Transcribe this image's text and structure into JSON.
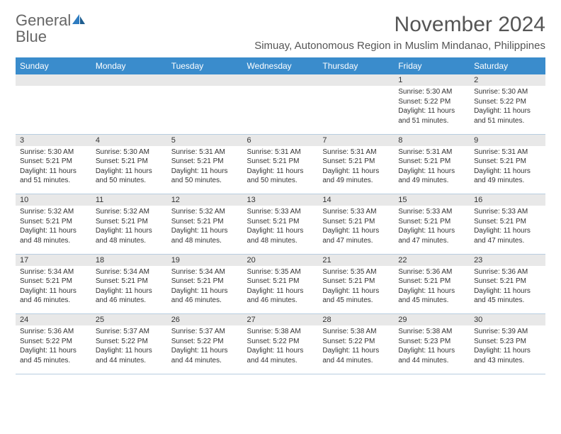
{
  "logo": {
    "word1": "General",
    "word2": "Blue"
  },
  "title": "November 2024",
  "location": "Simuay, Autonomous Region in Muslim Mindanao, Philippines",
  "colors": {
    "header_bg": "#3a8ccc",
    "header_text": "#ffffff",
    "daynum_bg": "#e8e8e8",
    "border": "#b8cde0",
    "text": "#333333",
    "title": "#555555",
    "logo_gray": "#666666",
    "logo_blue": "#2e7cc0"
  },
  "typography": {
    "title_fontsize": 30,
    "location_fontsize": 15,
    "header_fontsize": 12,
    "daynum_fontsize": 11,
    "cell_fontsize": 10
  },
  "weekdays": [
    "Sunday",
    "Monday",
    "Tuesday",
    "Wednesday",
    "Thursday",
    "Friday",
    "Saturday"
  ],
  "weeks": [
    {
      "nums": [
        "",
        "",
        "",
        "",
        "",
        "1",
        "2"
      ],
      "cells": [
        null,
        null,
        null,
        null,
        null,
        {
          "sunrise": "Sunrise: 5:30 AM",
          "sunset": "Sunset: 5:22 PM",
          "daylight": "Daylight: 11 hours and 51 minutes."
        },
        {
          "sunrise": "Sunrise: 5:30 AM",
          "sunset": "Sunset: 5:22 PM",
          "daylight": "Daylight: 11 hours and 51 minutes."
        }
      ]
    },
    {
      "nums": [
        "3",
        "4",
        "5",
        "6",
        "7",
        "8",
        "9"
      ],
      "cells": [
        {
          "sunrise": "Sunrise: 5:30 AM",
          "sunset": "Sunset: 5:21 PM",
          "daylight": "Daylight: 11 hours and 51 minutes."
        },
        {
          "sunrise": "Sunrise: 5:30 AM",
          "sunset": "Sunset: 5:21 PM",
          "daylight": "Daylight: 11 hours and 50 minutes."
        },
        {
          "sunrise": "Sunrise: 5:31 AM",
          "sunset": "Sunset: 5:21 PM",
          "daylight": "Daylight: 11 hours and 50 minutes."
        },
        {
          "sunrise": "Sunrise: 5:31 AM",
          "sunset": "Sunset: 5:21 PM",
          "daylight": "Daylight: 11 hours and 50 minutes."
        },
        {
          "sunrise": "Sunrise: 5:31 AM",
          "sunset": "Sunset: 5:21 PM",
          "daylight": "Daylight: 11 hours and 49 minutes."
        },
        {
          "sunrise": "Sunrise: 5:31 AM",
          "sunset": "Sunset: 5:21 PM",
          "daylight": "Daylight: 11 hours and 49 minutes."
        },
        {
          "sunrise": "Sunrise: 5:31 AM",
          "sunset": "Sunset: 5:21 PM",
          "daylight": "Daylight: 11 hours and 49 minutes."
        }
      ]
    },
    {
      "nums": [
        "10",
        "11",
        "12",
        "13",
        "14",
        "15",
        "16"
      ],
      "cells": [
        {
          "sunrise": "Sunrise: 5:32 AM",
          "sunset": "Sunset: 5:21 PM",
          "daylight": "Daylight: 11 hours and 48 minutes."
        },
        {
          "sunrise": "Sunrise: 5:32 AM",
          "sunset": "Sunset: 5:21 PM",
          "daylight": "Daylight: 11 hours and 48 minutes."
        },
        {
          "sunrise": "Sunrise: 5:32 AM",
          "sunset": "Sunset: 5:21 PM",
          "daylight": "Daylight: 11 hours and 48 minutes."
        },
        {
          "sunrise": "Sunrise: 5:33 AM",
          "sunset": "Sunset: 5:21 PM",
          "daylight": "Daylight: 11 hours and 48 minutes."
        },
        {
          "sunrise": "Sunrise: 5:33 AM",
          "sunset": "Sunset: 5:21 PM",
          "daylight": "Daylight: 11 hours and 47 minutes."
        },
        {
          "sunrise": "Sunrise: 5:33 AM",
          "sunset": "Sunset: 5:21 PM",
          "daylight": "Daylight: 11 hours and 47 minutes."
        },
        {
          "sunrise": "Sunrise: 5:33 AM",
          "sunset": "Sunset: 5:21 PM",
          "daylight": "Daylight: 11 hours and 47 minutes."
        }
      ]
    },
    {
      "nums": [
        "17",
        "18",
        "19",
        "20",
        "21",
        "22",
        "23"
      ],
      "cells": [
        {
          "sunrise": "Sunrise: 5:34 AM",
          "sunset": "Sunset: 5:21 PM",
          "daylight": "Daylight: 11 hours and 46 minutes."
        },
        {
          "sunrise": "Sunrise: 5:34 AM",
          "sunset": "Sunset: 5:21 PM",
          "daylight": "Daylight: 11 hours and 46 minutes."
        },
        {
          "sunrise": "Sunrise: 5:34 AM",
          "sunset": "Sunset: 5:21 PM",
          "daylight": "Daylight: 11 hours and 46 minutes."
        },
        {
          "sunrise": "Sunrise: 5:35 AM",
          "sunset": "Sunset: 5:21 PM",
          "daylight": "Daylight: 11 hours and 46 minutes."
        },
        {
          "sunrise": "Sunrise: 5:35 AM",
          "sunset": "Sunset: 5:21 PM",
          "daylight": "Daylight: 11 hours and 45 minutes."
        },
        {
          "sunrise": "Sunrise: 5:36 AM",
          "sunset": "Sunset: 5:21 PM",
          "daylight": "Daylight: 11 hours and 45 minutes."
        },
        {
          "sunrise": "Sunrise: 5:36 AM",
          "sunset": "Sunset: 5:21 PM",
          "daylight": "Daylight: 11 hours and 45 minutes."
        }
      ]
    },
    {
      "nums": [
        "24",
        "25",
        "26",
        "27",
        "28",
        "29",
        "30"
      ],
      "cells": [
        {
          "sunrise": "Sunrise: 5:36 AM",
          "sunset": "Sunset: 5:22 PM",
          "daylight": "Daylight: 11 hours and 45 minutes."
        },
        {
          "sunrise": "Sunrise: 5:37 AM",
          "sunset": "Sunset: 5:22 PM",
          "daylight": "Daylight: 11 hours and 44 minutes."
        },
        {
          "sunrise": "Sunrise: 5:37 AM",
          "sunset": "Sunset: 5:22 PM",
          "daylight": "Daylight: 11 hours and 44 minutes."
        },
        {
          "sunrise": "Sunrise: 5:38 AM",
          "sunset": "Sunset: 5:22 PM",
          "daylight": "Daylight: 11 hours and 44 minutes."
        },
        {
          "sunrise": "Sunrise: 5:38 AM",
          "sunset": "Sunset: 5:22 PM",
          "daylight": "Daylight: 11 hours and 44 minutes."
        },
        {
          "sunrise": "Sunrise: 5:38 AM",
          "sunset": "Sunset: 5:23 PM",
          "daylight": "Daylight: 11 hours and 44 minutes."
        },
        {
          "sunrise": "Sunrise: 5:39 AM",
          "sunset": "Sunset: 5:23 PM",
          "daylight": "Daylight: 11 hours and 43 minutes."
        }
      ]
    }
  ]
}
